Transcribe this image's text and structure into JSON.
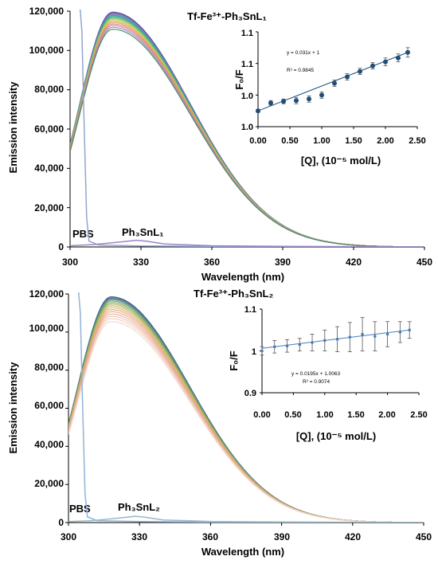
{
  "chart_data": [
    {
      "type": "line",
      "title": "Tf-Fe³⁺-Ph₃SnL₁",
      "xlabel": "Wavelength (nm)",
      "ylabel": "Emission intensity",
      "xlim": [
        300,
        450
      ],
      "ylim": [
        0,
        120000
      ],
      "x_ticks": [
        "300",
        "330",
        "360",
        "390",
        "420",
        "450"
      ],
      "y_ticks": [
        "0",
        "20,000",
        "40,000",
        "60,000",
        "80,000",
        "100,000",
        "120,000"
      ],
      "annotations": [
        "PBS",
        "Ph₃SnL₁"
      ],
      "main_series": {
        "count": 15,
        "peak_x": 318,
        "peaks": [
          119500,
          119000,
          118600,
          118200,
          117800,
          117300,
          116800,
          116300,
          115700,
          115000,
          114300,
          113500,
          112700,
          111800,
          110800
        ],
        "colors": [
          "#4a3f8f",
          "#6a5aa8",
          "#7a6db3",
          "#8e88c0",
          "#1f9aa8",
          "#2ab0a0",
          "#5fb36a",
          "#8fc45a",
          "#b9c95a",
          "#d9b24d",
          "#e39a5c",
          "#d77f76",
          "#c98aa6",
          "#a47fb8",
          "#3c8a5a"
        ]
      },
      "pbs_series": {
        "x": [
          300,
          304,
          305,
          306,
          307,
          308,
          312,
          330,
          360,
          390,
          420,
          450
        ],
        "y": [
          130000,
          125000,
          110000,
          60000,
          15000,
          3000,
          1000,
          500,
          300,
          200,
          100,
          0
        ],
        "color": "#8fa6cf"
      },
      "compound_series": {
        "x": [
          300,
          310,
          320,
          325,
          328,
          332,
          340,
          360,
          390,
          420,
          450
        ],
        "y": [
          600,
          1200,
          2400,
          3000,
          3400,
          3000,
          1500,
          600,
          300,
          150,
          0
        ],
        "color": "#9a86c6"
      },
      "inset": {
        "type": "scatter",
        "xlabel": "[Q], (10⁻⁵ mol/L)",
        "ylabel": "F₀/F",
        "x_ticks": [
          "0.00",
          "0.50",
          "1.00",
          "1.50",
          "2.00",
          "2.50"
        ],
        "y_tick_labels": [
          "1.0",
          "1.0",
          "1.1",
          "1.1"
        ],
        "xlim": [
          0,
          2.5
        ],
        "ylim": [
          0.98,
          1.1
        ],
        "equation": "y = 0.031x + 1",
        "r2": "R² = 0.9845",
        "x": [
          0,
          0.2,
          0.4,
          0.6,
          0.8,
          1.0,
          1.2,
          1.4,
          1.6,
          1.8,
          2.0,
          2.2,
          2.35
        ],
        "y": [
          1.0,
          1.01,
          1.012,
          1.013,
          1.015,
          1.02,
          1.035,
          1.043,
          1.05,
          1.057,
          1.062,
          1.067,
          1.074
        ],
        "err": [
          0.002,
          0.003,
          0.003,
          0.004,
          0.004,
          0.004,
          0.004,
          0.004,
          0.004,
          0.004,
          0.005,
          0.005,
          0.006
        ],
        "fit": {
          "slope": 0.031,
          "intercept": 1
        },
        "color": "#1f4e79"
      }
    },
    {
      "type": "line",
      "title": "Tf-Fe³⁺-Ph₃SnL₂",
      "xlabel": "Wavelength (nm)",
      "ylabel": "Emission intensity",
      "xlim": [
        300,
        450
      ],
      "ylim": [
        0,
        120000
      ],
      "x_ticks": [
        "300",
        "330",
        "360",
        "390",
        "420",
        "450"
      ],
      "y_ticks": [
        "0",
        "20,000",
        "40,000",
        "60,000",
        "80,000",
        "100,000",
        "120,000"
      ],
      "annotations": [
        "PBS",
        "Ph₃SnL₂"
      ],
      "main_series": {
        "count": 15,
        "peak_x": 318,
        "peaks": [
          118500,
          118000,
          117500,
          117000,
          116300,
          115500,
          114700,
          113800,
          112800,
          111800,
          110700,
          109500,
          108300,
          107000,
          105500
        ],
        "colors": [
          "#2f4f7f",
          "#3f6a8f",
          "#4f7f8a",
          "#5e8f7e",
          "#6e9a6a",
          "#86a85c",
          "#a3b25a",
          "#c3b65a",
          "#d9b06a",
          "#e3a77a",
          "#e7a38a",
          "#e9ae9a",
          "#edbfae",
          "#f0cbb9",
          "#f2d6c6"
        ]
      },
      "pbs_series": {
        "x": [
          300,
          304,
          305,
          306,
          307,
          308,
          312,
          330,
          360,
          390,
          420,
          450
        ],
        "y": [
          130000,
          125000,
          110000,
          60000,
          15000,
          3000,
          1000,
          500,
          300,
          200,
          100,
          0
        ],
        "color": "#8fb3d9"
      },
      "compound_series": {
        "x": [
          300,
          310,
          320,
          325,
          328,
          332,
          340,
          360,
          390,
          420,
          450
        ],
        "y": [
          500,
          1000,
          2200,
          2900,
          3300,
          2900,
          1400,
          600,
          300,
          150,
          0
        ],
        "color": "#9ab8c8"
      },
      "inset": {
        "type": "scatter",
        "xlabel": "[Q], (10⁻⁵ mol/L)",
        "ylabel": "F₀/F",
        "x_ticks": [
          "0.00",
          "0.50",
          "1.00",
          "1.50",
          "2.00",
          "2.50"
        ],
        "y_tick_labels": [
          "0.9",
          "1",
          "1.1"
        ],
        "xlim": [
          0,
          2.5
        ],
        "ylim": [
          0.9,
          1.1
        ],
        "equation": "y = 0.0195x + 1.0063",
        "r2": "R² = 0.9074",
        "x": [
          0,
          0.2,
          0.4,
          0.6,
          0.8,
          1.0,
          1.2,
          1.4,
          1.6,
          1.8,
          2.0,
          2.2,
          2.35
        ],
        "y": [
          1.0,
          1.01,
          1.012,
          1.015,
          1.02,
          1.025,
          1.028,
          1.033,
          1.04,
          1.035,
          1.04,
          1.045,
          1.05
        ],
        "err": [
          0.01,
          0.015,
          0.015,
          0.015,
          0.02,
          0.025,
          0.03,
          0.035,
          0.04,
          0.035,
          0.03,
          0.025,
          0.02
        ],
        "fit": {
          "slope": 0.0195,
          "intercept": 1.0063
        },
        "color": "#4a7bb7"
      }
    }
  ]
}
